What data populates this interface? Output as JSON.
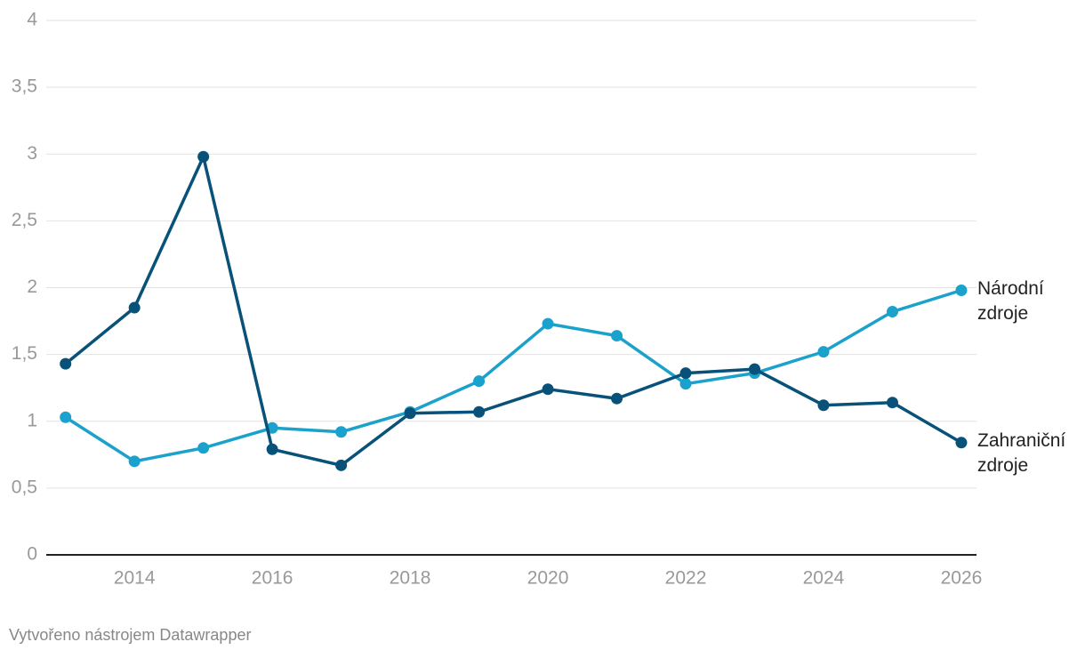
{
  "chart_data": {
    "type": "line",
    "x": [
      2013,
      2014,
      2015,
      2016,
      2017,
      2018,
      2019,
      2020,
      2021,
      2022,
      2023,
      2024,
      2025,
      2026
    ],
    "series": [
      {
        "name": "Národní zdroje",
        "color": "#1aa1cc",
        "values": [
          1.03,
          0.7,
          0.8,
          0.95,
          0.92,
          1.07,
          1.3,
          1.73,
          1.64,
          1.28,
          1.36,
          1.52,
          1.82,
          1.98
        ]
      },
      {
        "name": "Zahraniční zdroje",
        "color": "#08527a",
        "values": [
          1.43,
          1.85,
          2.98,
          0.79,
          0.67,
          1.06,
          1.07,
          1.24,
          1.17,
          1.36,
          1.39,
          1.12,
          1.14,
          0.84
        ]
      }
    ],
    "xlim": [
      2012.72,
      2026.22
    ],
    "xticks": [
      2014,
      2016,
      2018,
      2020,
      2022,
      2024,
      2026
    ],
    "ylim": [
      0,
      4
    ],
    "yticks": [
      0,
      {
        "value": 0.5,
        "label": "0,5"
      },
      1,
      {
        "value": 1.5,
        "label": "1,5"
      },
      2,
      {
        "value": 2.5,
        "label": "2,5"
      },
      3,
      {
        "value": 3.5,
        "label": "3,5"
      },
      4
    ],
    "grid": true,
    "credit": "Vytvořeno nástrojem Datawrapper"
  }
}
